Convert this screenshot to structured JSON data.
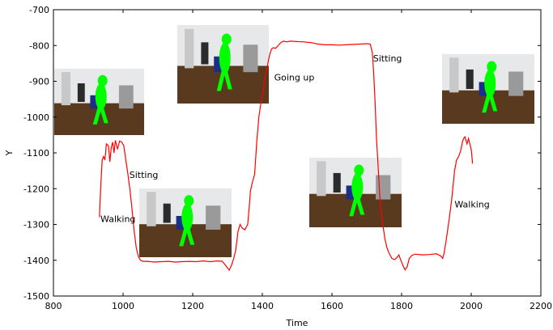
{
  "chart_data": {
    "type": "line",
    "title": "",
    "xlabel": "Time",
    "ylabel": "Y",
    "xlim": [
      800,
      2200
    ],
    "ylim": [
      -1500,
      -700
    ],
    "y_inverted": true,
    "x_ticks": [
      800,
      1000,
      1200,
      1400,
      1600,
      1800,
      2000,
      2200
    ],
    "y_ticks": [
      -700,
      -800,
      -900,
      -1000,
      -1100,
      -1200,
      -1300,
      -1400,
      -1500
    ],
    "grid": false,
    "legend": "none",
    "colors": {
      "line": "#ff0000",
      "frame": "#000000",
      "inset_bg": "#5a3a1e",
      "silhouette": "#00ff00"
    },
    "series": [
      {
        "name": "",
        "points": [
          [
            932,
            -1280
          ],
          [
            936,
            -1190
          ],
          [
            940,
            -1120
          ],
          [
            944,
            -1110
          ],
          [
            948,
            -1120
          ],
          [
            952,
            -1075
          ],
          [
            958,
            -1080
          ],
          [
            962,
            -1125
          ],
          [
            966,
            -1085
          ],
          [
            970,
            -1070
          ],
          [
            974,
            -1100
          ],
          [
            978,
            -1065
          ],
          [
            984,
            -1090
          ],
          [
            990,
            -1067
          ],
          [
            996,
            -1070
          ],
          [
            1002,
            -1080
          ],
          [
            1008,
            -1120
          ],
          [
            1014,
            -1160
          ],
          [
            1020,
            -1205
          ],
          [
            1026,
            -1260
          ],
          [
            1032,
            -1320
          ],
          [
            1038,
            -1365
          ],
          [
            1044,
            -1390
          ],
          [
            1050,
            -1400
          ],
          [
            1058,
            -1403
          ],
          [
            1070,
            -1403
          ],
          [
            1090,
            -1405
          ],
          [
            1110,
            -1404
          ],
          [
            1130,
            -1403
          ],
          [
            1150,
            -1405
          ],
          [
            1170,
            -1404
          ],
          [
            1190,
            -1403
          ],
          [
            1210,
            -1404
          ],
          [
            1230,
            -1402
          ],
          [
            1250,
            -1404
          ],
          [
            1270,
            -1402
          ],
          [
            1285,
            -1403
          ],
          [
            1295,
            -1415
          ],
          [
            1305,
            -1428
          ],
          [
            1312,
            -1412
          ],
          [
            1318,
            -1395
          ],
          [
            1324,
            -1370
          ],
          [
            1330,
            -1320
          ],
          [
            1336,
            -1300
          ],
          [
            1342,
            -1310
          ],
          [
            1350,
            -1315
          ],
          [
            1358,
            -1300
          ],
          [
            1362,
            -1255
          ],
          [
            1366,
            -1205
          ],
          [
            1372,
            -1180
          ],
          [
            1378,
            -1160
          ],
          [
            1384,
            -1070
          ],
          [
            1390,
            -1000
          ],
          [
            1396,
            -960
          ],
          [
            1402,
            -930
          ],
          [
            1408,
            -890
          ],
          [
            1414,
            -860
          ],
          [
            1420,
            -830
          ],
          [
            1426,
            -810
          ],
          [
            1432,
            -806
          ],
          [
            1438,
            -808
          ],
          [
            1444,
            -802
          ],
          [
            1450,
            -795
          ],
          [
            1456,
            -790
          ],
          [
            1462,
            -788
          ],
          [
            1470,
            -790
          ],
          [
            1480,
            -788
          ],
          [
            1500,
            -789
          ],
          [
            1520,
            -790
          ],
          [
            1540,
            -792
          ],
          [
            1560,
            -796
          ],
          [
            1580,
            -798
          ],
          [
            1600,
            -798
          ],
          [
            1620,
            -799
          ],
          [
            1640,
            -798
          ],
          [
            1660,
            -797
          ],
          [
            1680,
            -796
          ],
          [
            1700,
            -795
          ],
          [
            1710,
            -796
          ],
          [
            1716,
            -820
          ],
          [
            1720,
            -880
          ],
          [
            1724,
            -960
          ],
          [
            1728,
            -1060
          ],
          [
            1734,
            -1160
          ],
          [
            1738,
            -1230
          ],
          [
            1742,
            -1270
          ],
          [
            1746,
            -1300
          ],
          [
            1752,
            -1340
          ],
          [
            1758,
            -1365
          ],
          [
            1764,
            -1380
          ],
          [
            1772,
            -1395
          ],
          [
            1780,
            -1398
          ],
          [
            1786,
            -1393
          ],
          [
            1792,
            -1385
          ],
          [
            1798,
            -1400
          ],
          [
            1804,
            -1415
          ],
          [
            1810,
            -1427
          ],
          [
            1816,
            -1418
          ],
          [
            1822,
            -1395
          ],
          [
            1830,
            -1386
          ],
          [
            1840,
            -1383
          ],
          [
            1860,
            -1385
          ],
          [
            1880,
            -1384
          ],
          [
            1900,
            -1382
          ],
          [
            1912,
            -1388
          ],
          [
            1918,
            -1395
          ],
          [
            1922,
            -1380
          ],
          [
            1928,
            -1345
          ],
          [
            1936,
            -1290
          ],
          [
            1944,
            -1230
          ],
          [
            1952,
            -1150
          ],
          [
            1958,
            -1120
          ],
          [
            1964,
            -1110
          ],
          [
            1970,
            -1093
          ],
          [
            1974,
            -1073
          ],
          [
            1978,
            -1060
          ],
          [
            1982,
            -1055
          ],
          [
            1988,
            -1075
          ],
          [
            1992,
            -1060
          ],
          [
            1996,
            -1075
          ],
          [
            2000,
            -1090
          ],
          [
            2004,
            -1130
          ]
        ]
      }
    ],
    "annotations": [
      {
        "text": "Walking",
        "x": 935,
        "y": -1293
      },
      {
        "text": "Sitting",
        "x": 1018,
        "y": -1170
      },
      {
        "text": "Going up",
        "x": 1434,
        "y": -898
      },
      {
        "text": "Sitting",
        "x": 1718,
        "y": -845
      },
      {
        "text": "Walking",
        "x": 1952,
        "y": -1253
      }
    ]
  }
}
